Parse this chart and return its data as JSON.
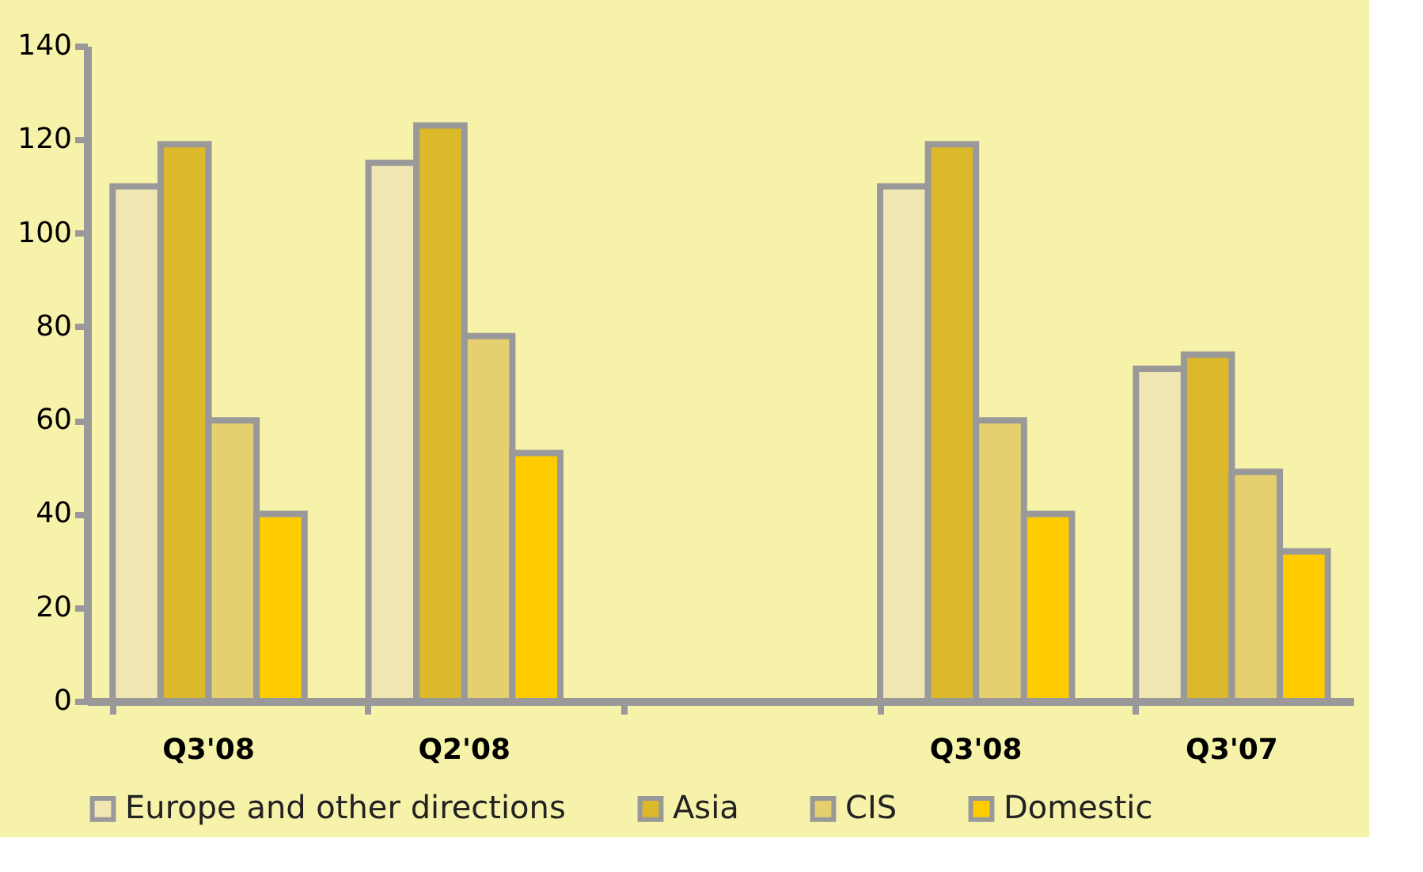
{
  "chart_data": {
    "type": "bar",
    "categories": [
      "Q3'08",
      "Q2'08",
      null,
      "Q3'08",
      "Q3'07"
    ],
    "series": [
      {
        "name": "Europe and other directions",
        "color": "#f0e6b2",
        "values": [
          110,
          115,
          null,
          110,
          71
        ]
      },
      {
        "name": "Asia",
        "color": "#dbb92a",
        "values": [
          119,
          123,
          null,
          119,
          74
        ]
      },
      {
        "name": "CIS",
        "color": "#e5cf6e",
        "values": [
          60,
          78,
          null,
          60,
          49
        ]
      },
      {
        "name": "Domestic",
        "color": "#ffcc00",
        "values": [
          40,
          53,
          null,
          40,
          32
        ]
      }
    ],
    "ylim": [
      0,
      140
    ],
    "yticks": [
      0,
      20,
      40,
      60,
      80,
      100,
      120,
      140
    ],
    "grid": false,
    "legend": "bottom"
  }
}
